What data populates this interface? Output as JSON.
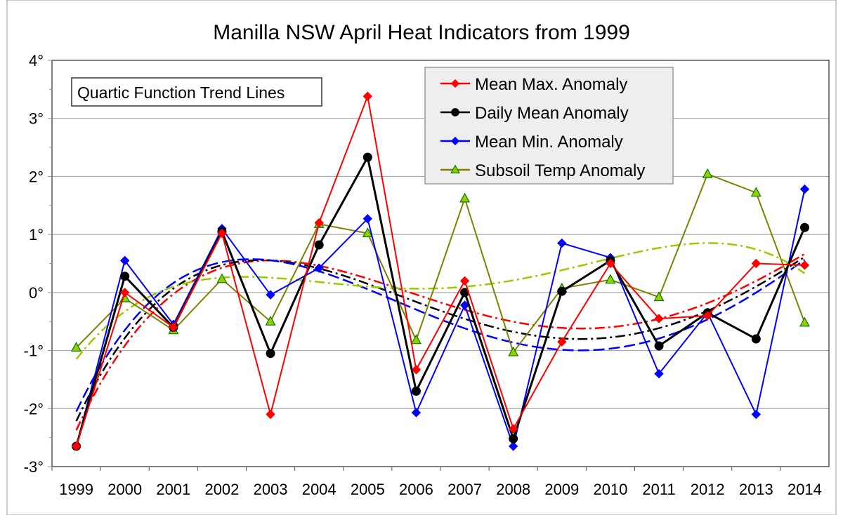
{
  "chart_data": {
    "type": "line",
    "title": "Manilla NSW April Heat Indicators from 1999",
    "annotation": "Quartic Function Trend Lines",
    "xlabel": "",
    "ylabel": "",
    "ylim": [
      -3,
      4
    ],
    "y_ticks": [
      "-3°",
      "-2°",
      "-1°",
      "0°",
      "1°",
      "2°",
      "3°",
      "4°"
    ],
    "y_tick_values": [
      -3,
      -2,
      -1,
      0,
      1,
      2,
      3,
      4
    ],
    "grid": true,
    "legend_position": "top-right",
    "categories": [
      "1999",
      "2000",
      "2001",
      "2002",
      "2003",
      "2004",
      "2005",
      "2006",
      "2007",
      "2008",
      "2009",
      "2010",
      "2011",
      "2012",
      "2013",
      "2014"
    ],
    "series": [
      {
        "name": "Mean Max. Anomaly",
        "color": "#ff0000",
        "marker": "diamond",
        "trend": "quartic",
        "values": [
          -2.65,
          0.0,
          -0.6,
          1.02,
          -2.1,
          1.2,
          3.38,
          -1.33,
          0.2,
          -2.35,
          -0.85,
          0.5,
          -0.45,
          -0.4,
          0.5,
          0.47
        ]
      },
      {
        "name": "Daily Mean Anomaly",
        "color": "#000000",
        "marker": "circle",
        "trend": "quartic",
        "values": [
          -2.65,
          0.28,
          -0.6,
          1.05,
          -1.05,
          0.82,
          2.33,
          -1.7,
          0.0,
          -2.52,
          0.02,
          0.55,
          -0.92,
          -0.35,
          -0.8,
          1.12
        ]
      },
      {
        "name": "Mean Min. Anomaly",
        "color": "#0000ff",
        "marker": "diamond",
        "trend": "quartic",
        "values": [
          -2.65,
          0.55,
          -0.55,
          1.1,
          -0.04,
          0.42,
          1.27,
          -2.07,
          -0.22,
          -2.65,
          0.85,
          0.6,
          -1.4,
          -0.35,
          -2.1,
          1.78
        ]
      },
      {
        "name": "Subsoil Temp Anomaly",
        "color": "#808000",
        "trend_color": "#99cc00",
        "marker": "triangle",
        "trend": "quartic",
        "values": [
          -0.95,
          -0.1,
          -0.65,
          0.23,
          -0.5,
          1.18,
          1.02,
          -0.82,
          1.62,
          -1.03,
          0.07,
          0.22,
          -0.08,
          2.04,
          1.72,
          -0.52
        ]
      }
    ]
  }
}
